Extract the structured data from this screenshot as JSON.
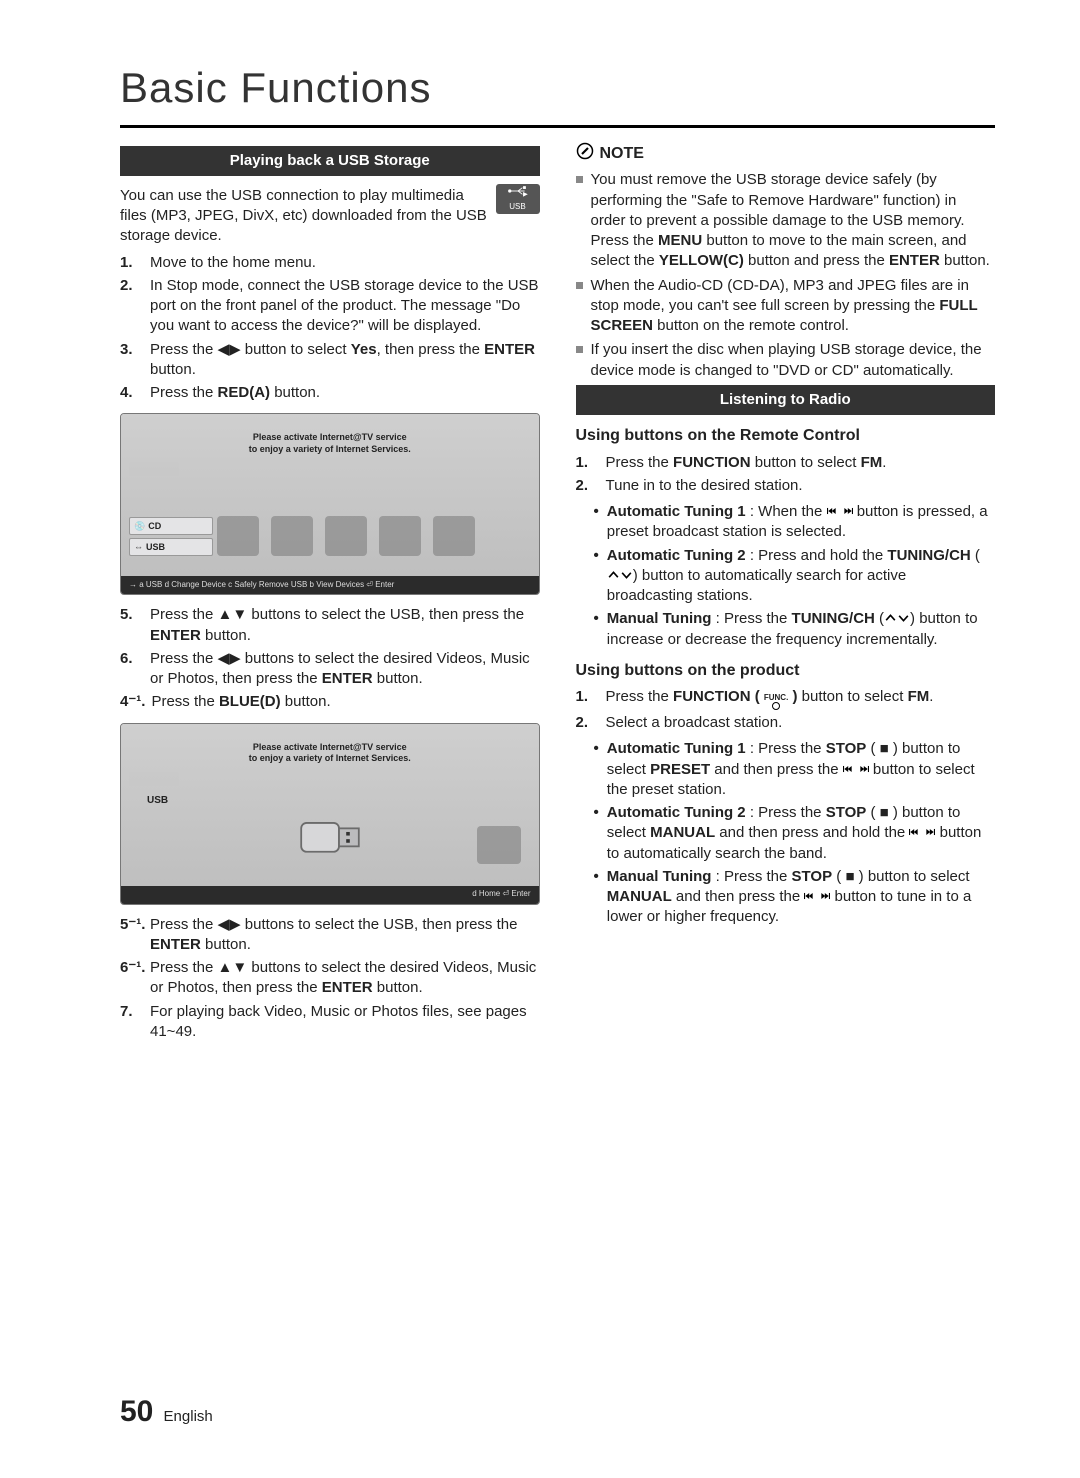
{
  "page": {
    "title": "Basic Functions",
    "number": "50",
    "language": "English"
  },
  "left": {
    "section_title": "Playing back a USB Storage",
    "usb_label": "USB",
    "intro": "You can use the USB connection to play multimedia files (MP3, JPEG, DivX, etc) downloaded from the USB storage device.",
    "steps_a": [
      {
        "n": "1.",
        "t": "Move to the home menu."
      },
      {
        "n": "2.",
        "t": "In Stop mode, connect the USB storage device to the USB port on the front panel of the product. The message \"Do you want to access the device?\" will be displayed."
      },
      {
        "n": "3.",
        "html": "Press the <span class='glyph'>◀▶</span> button to select <b>Yes</b>, then press the <b>ENTER</b> button."
      },
      {
        "n": "4.",
        "html": "Press the <b>RED(A)</b> button."
      }
    ],
    "scr1": {
      "banner1": "Please activate Internet@TV service",
      "banner2": "to enjoy a variety of Internet Services.",
      "tab_cd": "CD",
      "tab_usb": "USB",
      "bar_left": "→ a USB   d Change Device   c Safely Remove USB   b View Devices   ⏎ Enter"
    },
    "steps_b": [
      {
        "n": "5.",
        "html": "Press the <span class='glyph'>▲▼</span> buttons to select the USB, then press the <b>ENTER</b> button."
      },
      {
        "n": "6.",
        "html": "Press the <span class='glyph'>◀▶</span> buttons to select the desired Videos, Music or Photos, then press the <b>ENTER</b> button."
      },
      {
        "n": "4⁻¹.",
        "html": "Press the <b>BLUE(D)</b> button."
      }
    ],
    "scr2": {
      "banner1": "Please activate Internet@TV service",
      "banner2": "to enjoy a variety of Internet Services.",
      "usb": "USB",
      "bar_right": "d Home   ⏎ Enter"
    },
    "steps_c": [
      {
        "n": "5⁻¹.",
        "html": "Press the <span class='glyph'>◀▶</span> buttons to select the USB, then press the <b>ENTER</b> button."
      },
      {
        "n": "6⁻¹.",
        "html": "Press the <span class='glyph'>▲▼</span> buttons to select the desired Videos, Music or Photos, then press the <b>ENTER</b> button."
      },
      {
        "n": "7.",
        "t": "For playing back Video, Music or Photos files, see pages 41~49."
      }
    ]
  },
  "right": {
    "note_label": "NOTE",
    "notes": [
      "You must remove the USB storage device safely (by performing the \"Safe to Remove Hardware\" function) in order to prevent a possible damage to the USB memory. Press the <b>MENU</b> button to move to the main screen, and select the <b>YELLOW(C)</b> button and press the <b>ENTER</b> button.",
      "When the Audio-CD (CD-DA), MP3 and JPEG files are in stop mode, you can't see full screen by pressing the <b>FULL SCREEN</b> button on the remote control.",
      "If you insert the disc when playing USB storage device, the device mode is changed to \"DVD or CD\" automatically."
    ],
    "section_title": "Listening to Radio",
    "sub1": "Using buttons on the Remote Control",
    "r1": [
      {
        "n": "1.",
        "html": "Press the <b>FUNCTION</b> button to select <b>FM</b>."
      },
      {
        "n": "2.",
        "t": "Tune in to the desired station."
      }
    ],
    "r1_bul": [
      "<b>Automatic Tuning 1</b> : When the <span class='skip'>__SKIP__</span> button is pressed, a preset broadcast station is selected.",
      "<b>Automatic Tuning 2</b> : Press and hold the <b>TUNING/CH</b> (<span class='chev'>__CHEV__</span>) button to automatically search for active broadcasting stations.",
      "<b>Manual Tuning</b> : Press the <b>TUNING/CH</b> (<span class='chev'>__CHEV__</span>) button to increase or decrease the frequency incrementally."
    ],
    "sub2": "Using buttons on the product",
    "r2": [
      {
        "n": "1.",
        "html": "Press the <b>FUNCTION ( <span class='func'><span>FUNC.</span><span class='dot'></span></span> )</b> button to select <b>FM</b>."
      },
      {
        "n": "2.",
        "t": "Select a broadcast station."
      }
    ],
    "r2_bul": [
      "<b>Automatic Tuning 1</b> : Press the <b>STOP</b> ( ■ ) button to select <b>PRESET</b> and then press the <span class='skip'>__SKIP__</span> button to select the preset station.",
      "<b>Automatic Tuning 2</b> : Press the <b>STOP</b> ( ■ ) button to select <b>MANUAL</b> and then press and hold the <span class='skip'>__SKIP__</span> button to automatically search the band.",
      "<b>Manual Tuning</b> : Press the <b>STOP</b> ( ■ ) button to select <b>MANUAL</b> and then press the <span class='skip'>__SKIP__</span> button to tune in to a lower or higher frequency."
    ]
  },
  "svg": {
    "skip": "<svg viewBox='0 0 60 20'><g fill='#000'><rect x='0' y='3' width='2.5' height='14'/><polygon points='12,3 3,10 12,17'/><polygon points='20,3 11,10 20,17'/><rect x='57.5' y='3' width='2.5' height='14'/><polygon points='40,3 49,10 40,17'/><polygon points='48,3 57,10 48,17'/></g></svg>",
    "chev": "<svg viewBox='0 0 48 20'><g fill='none' stroke='#000' stroke-width='3'><polyline points='4,14 12,5 20,14'/><polyline points='28,6 36,15 44,6'/></g></svg>",
    "pencil": "<svg viewBox='0 0 24 24'><g fill='none' stroke='#000' stroke-width='2'><circle cx='12' cy='12' r='10'/><path d='M7 15 L15 7 L17 9 L9 17 Z' fill='#000' stroke='none'/></g></svg>",
    "trident": "<svg viewBox='0 0 40 20'><g stroke='#fff' stroke-width='1.6' fill='#fff'><circle cx='5' cy='10' r='2.2'/><line x1='7' y1='10' x2='32' y2='10'/><line x1='20' y1='10' x2='28' y2='4'/><line x1='20' y1='10' x2='28' y2='16'/><rect x='30' y='2' width='3.5' height='3.5'/><polygon points='30,13 36,10 30,7' transform='translate(0,6)'/></g></svg>",
    "plug": "<svg viewBox='0 0 80 60'><g fill='#d7d7d9' stroke='#6b6b6b' stroke-width='2'><rect x='8' y='14' width='42' height='32' rx='6'/><rect x='50' y='20' width='22' height='20' fill='#bcbcbe'/><rect x='58' y='24' width='4' height='4' fill='#333' stroke='none'/><rect x='58' y='32' width='4' height='4' fill='#333' stroke='none'/></g></svg>"
  }
}
